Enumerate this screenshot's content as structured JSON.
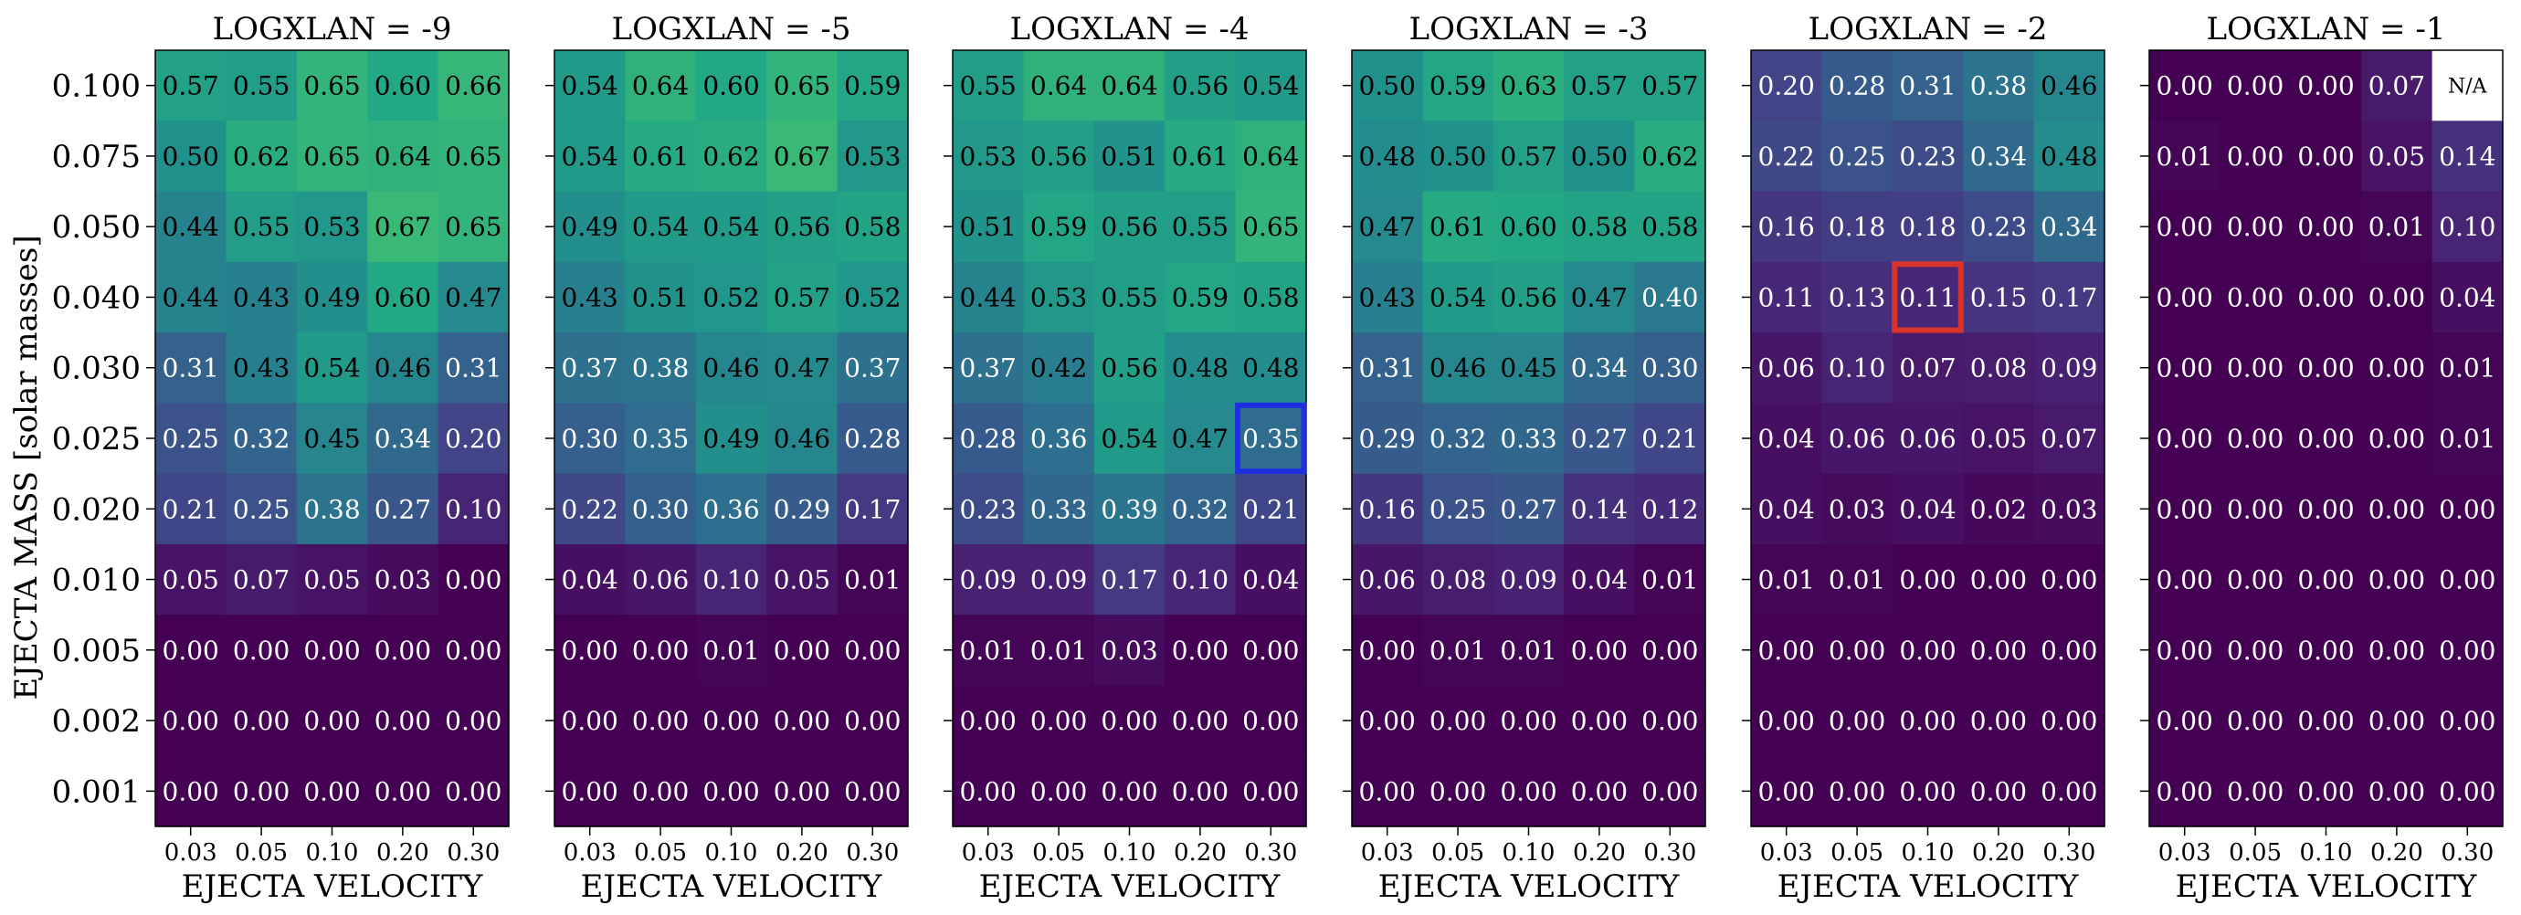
{
  "chart_data": {
    "type": "heatmap",
    "ylabel": "EJECTA MASS [solar masses]",
    "xlabel": "EJECTA VELOCITY",
    "x_categories": [
      "0.03",
      "0.05",
      "0.10",
      "0.20",
      "0.30"
    ],
    "y_categories": [
      "0.100",
      "0.075",
      "0.050",
      "0.040",
      "0.030",
      "0.025",
      "0.020",
      "0.010",
      "0.005",
      "0.002",
      "0.001"
    ],
    "color_range": [
      0,
      1
    ],
    "colormap": "viridis",
    "missing_label": "N/A",
    "panels": [
      {
        "title": "LOGXLAN = -9",
        "values": [
          [
            0.57,
            0.55,
            0.65,
            0.6,
            0.66
          ],
          [
            0.5,
            0.62,
            0.65,
            0.64,
            0.65
          ],
          [
            0.44,
            0.55,
            0.53,
            0.67,
            0.65
          ],
          [
            0.44,
            0.43,
            0.49,
            0.6,
            0.47
          ],
          [
            0.31,
            0.43,
            0.54,
            0.46,
            0.31
          ],
          [
            0.25,
            0.32,
            0.45,
            0.34,
            0.2
          ],
          [
            0.21,
            0.25,
            0.38,
            0.27,
            0.1
          ],
          [
            0.05,
            0.07,
            0.05,
            0.03,
            0.0
          ],
          [
            0.0,
            0.0,
            0.0,
            0.0,
            0.0
          ],
          [
            0.0,
            0.0,
            0.0,
            0.0,
            0.0
          ],
          [
            0.0,
            0.0,
            0.0,
            0.0,
            0.0
          ]
        ]
      },
      {
        "title": "LOGXLAN = -5",
        "values": [
          [
            0.54,
            0.64,
            0.6,
            0.65,
            0.59
          ],
          [
            0.54,
            0.61,
            0.62,
            0.67,
            0.53
          ],
          [
            0.49,
            0.54,
            0.54,
            0.56,
            0.58
          ],
          [
            0.43,
            0.51,
            0.52,
            0.57,
            0.52
          ],
          [
            0.37,
            0.38,
            0.46,
            0.47,
            0.37
          ],
          [
            0.3,
            0.35,
            0.49,
            0.46,
            0.28
          ],
          [
            0.22,
            0.3,
            0.36,
            0.29,
            0.17
          ],
          [
            0.04,
            0.06,
            0.1,
            0.05,
            0.01
          ],
          [
            0.0,
            0.0,
            0.01,
            0.0,
            0.0
          ],
          [
            0.0,
            0.0,
            0.0,
            0.0,
            0.0
          ],
          [
            0.0,
            0.0,
            0.0,
            0.0,
            0.0
          ]
        ]
      },
      {
        "title": "LOGXLAN = -4",
        "highlight": {
          "row": 5,
          "col": 4,
          "color": "#1f2fe0"
        },
        "values": [
          [
            0.55,
            0.64,
            0.64,
            0.56,
            0.54
          ],
          [
            0.53,
            0.56,
            0.51,
            0.61,
            0.64
          ],
          [
            0.51,
            0.59,
            0.56,
            0.55,
            0.65
          ],
          [
            0.44,
            0.53,
            0.55,
            0.59,
            0.58
          ],
          [
            0.37,
            0.42,
            0.56,
            0.48,
            0.48
          ],
          [
            0.28,
            0.36,
            0.54,
            0.47,
            0.35
          ],
          [
            0.23,
            0.33,
            0.39,
            0.32,
            0.21
          ],
          [
            0.09,
            0.09,
            0.17,
            0.1,
            0.04
          ],
          [
            0.01,
            0.01,
            0.03,
            0.0,
            0.0
          ],
          [
            0.0,
            0.0,
            0.0,
            0.0,
            0.0
          ],
          [
            0.0,
            0.0,
            0.0,
            0.0,
            0.0
          ]
        ]
      },
      {
        "title": "LOGXLAN = -3",
        "values": [
          [
            0.5,
            0.59,
            0.63,
            0.57,
            0.57
          ],
          [
            0.48,
            0.5,
            0.57,
            0.5,
            0.62
          ],
          [
            0.47,
            0.61,
            0.6,
            0.58,
            0.58
          ],
          [
            0.43,
            0.54,
            0.56,
            0.47,
            0.4
          ],
          [
            0.31,
            0.46,
            0.45,
            0.34,
            0.3
          ],
          [
            0.29,
            0.32,
            0.33,
            0.27,
            0.21
          ],
          [
            0.16,
            0.25,
            0.27,
            0.14,
            0.12
          ],
          [
            0.06,
            0.08,
            0.09,
            0.04,
            0.01
          ],
          [
            0.0,
            0.01,
            0.01,
            0.0,
            0.0
          ],
          [
            0.0,
            0.0,
            0.0,
            0.0,
            0.0
          ],
          [
            0.0,
            0.0,
            0.0,
            0.0,
            0.0
          ]
        ]
      },
      {
        "title": "LOGXLAN = -2",
        "highlight": {
          "row": 3,
          "col": 2,
          "color": "#d9342b"
        },
        "values": [
          [
            0.2,
            0.28,
            0.31,
            0.38,
            0.46
          ],
          [
            0.22,
            0.25,
            0.23,
            0.34,
            0.48
          ],
          [
            0.16,
            0.18,
            0.18,
            0.23,
            0.34
          ],
          [
            0.11,
            0.13,
            0.11,
            0.15,
            0.17
          ],
          [
            0.06,
            0.1,
            0.07,
            0.08,
            0.09
          ],
          [
            0.04,
            0.06,
            0.06,
            0.05,
            0.07
          ],
          [
            0.04,
            0.03,
            0.04,
            0.02,
            0.03
          ],
          [
            0.01,
            0.01,
            0.0,
            0.0,
            0.0
          ],
          [
            0.0,
            0.0,
            0.0,
            0.0,
            0.0
          ],
          [
            0.0,
            0.0,
            0.0,
            0.0,
            0.0
          ],
          [
            0.0,
            0.0,
            0.0,
            0.0,
            0.0
          ]
        ]
      },
      {
        "title": "LOGXLAN = -1",
        "values": [
          [
            0.0,
            0.0,
            0.0,
            0.07,
            null
          ],
          [
            0.01,
            0.0,
            0.0,
            0.05,
            0.14
          ],
          [
            0.0,
            0.0,
            0.0,
            0.01,
            0.1
          ],
          [
            0.0,
            0.0,
            0.0,
            0.0,
            0.04
          ],
          [
            0.0,
            0.0,
            0.0,
            0.0,
            0.01
          ],
          [
            0.0,
            0.0,
            0.0,
            0.0,
            0.01
          ],
          [
            0.0,
            0.0,
            0.0,
            0.0,
            0.0
          ],
          [
            0.0,
            0.0,
            0.0,
            0.0,
            0.0
          ],
          [
            0.0,
            0.0,
            0.0,
            0.0,
            0.0
          ],
          [
            0.0,
            0.0,
            0.0,
            0.0,
            0.0
          ],
          [
            0.0,
            0.0,
            0.0,
            0.0,
            0.0
          ]
        ]
      }
    ]
  }
}
